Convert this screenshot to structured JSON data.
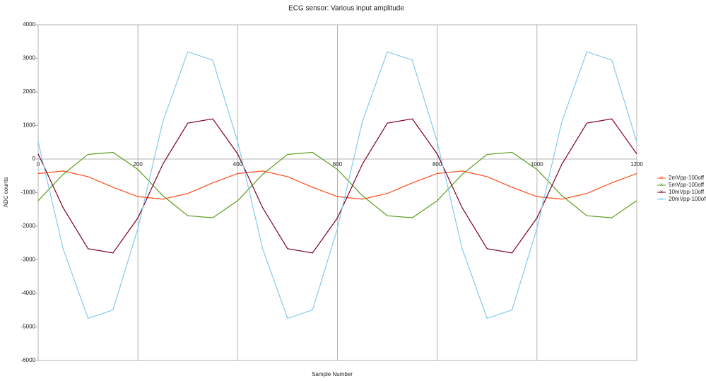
{
  "chart_data": {
    "type": "line",
    "title": "ECG sensor: Various input amplitude",
    "x_label": "Sample Number",
    "y_label": "ADC counts",
    "x": [
      0,
      50,
      100,
      150,
      200,
      250,
      300,
      350,
      400,
      450,
      500,
      550,
      600,
      650,
      700,
      750,
      800,
      850,
      900,
      950,
      1000,
      1050,
      1100,
      1150,
      1200
    ],
    "series": [
      {
        "name": "2mVpp-100off",
        "color": "#ff4a1a",
        "values": [
          -431,
          -355,
          -525,
          -841,
          -1119,
          -1195,
          -1025,
          -709,
          -431,
          -355,
          -525,
          -841,
          -1119,
          -1195,
          -1025,
          -709,
          -431,
          -355,
          -525,
          -841,
          -1119,
          -1195,
          -1025,
          -709,
          -431
        ]
      },
      {
        "name": "5mVpp-100off",
        "color": "#5b9e1c",
        "values": [
          -1240,
          -458,
          138,
          200,
          -310,
          -1092,
          -1688,
          -1750,
          -1240,
          -458,
          138,
          200,
          -310,
          -1092,
          -1688,
          -1750,
          -1240,
          -458,
          138,
          200,
          -310,
          -1092,
          -1688,
          -1750,
          -1240
        ]
      },
      {
        "name": "10mVpp-10off",
        "color": "#7b0022",
        "values": [
          153,
          -1449,
          -2671,
          -2797,
          -1753,
          -151,
          1071,
          1197,
          153,
          -1449,
          -2671,
          -2797,
          -1753,
          -151,
          1071,
          1197,
          153,
          -1449,
          -2671,
          -2797,
          -1753,
          -151,
          1071,
          1197,
          153
        ]
      },
      {
        "name": "20mVpp-100off",
        "color": "#83caf0",
        "values": [
          515,
          -2670,
          -4745,
          -4495,
          -2065,
          1120,
          3195,
          2945,
          515,
          -2670,
          -4745,
          -4495,
          -2065,
          1120,
          3195,
          2945,
          515,
          -2670,
          -4745,
          -4495,
          -2065,
          1120,
          3195,
          2945,
          515
        ]
      }
    ],
    "xlim": [
      0,
      1200
    ],
    "xticks": [
      0,
      200,
      400,
      600,
      800,
      1000,
      1200
    ],
    "ylim": [
      -6000,
      4000
    ],
    "yticks": [
      -6000,
      -5000,
      -4000,
      -3000,
      -2000,
      -1000,
      0,
      1000,
      2000,
      3000,
      4000
    ],
    "grid": true,
    "legend": "right"
  }
}
